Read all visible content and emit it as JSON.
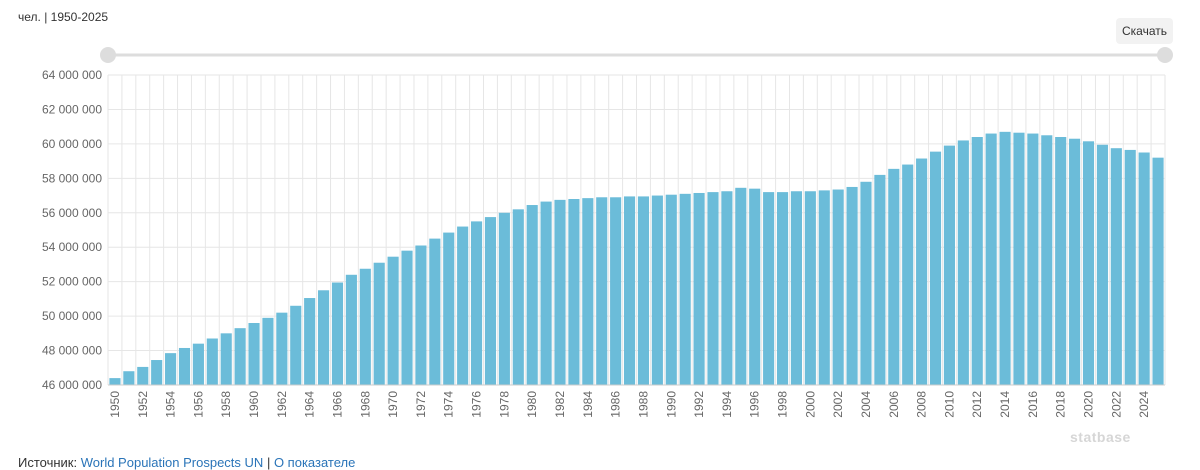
{
  "header": {
    "unit_range": "чел. | 1950-2025",
    "download": "Скачать"
  },
  "chart_data": {
    "type": "bar",
    "color": "#6bbcd9",
    "grid": true,
    "categories": [
      "1950",
      null,
      "1952",
      null,
      "1954",
      null,
      "1956",
      null,
      "1958",
      null,
      "1960",
      null,
      "1962",
      null,
      "1964",
      null,
      "1966",
      null,
      "1968",
      null,
      "1970",
      null,
      "1972",
      null,
      "1974",
      null,
      "1976",
      null,
      "1978",
      null,
      "1980",
      null,
      "1982",
      null,
      "1984",
      null,
      "1986",
      null,
      "1988",
      null,
      "1990",
      null,
      "1992",
      null,
      "1994",
      null,
      "1996",
      null,
      "1998",
      null,
      "2000",
      null,
      "2002",
      null,
      "2004",
      null,
      "2006",
      null,
      "2008",
      null,
      "2010",
      null,
      "2012",
      null,
      "2014",
      null,
      "2016",
      null,
      "2018",
      null,
      "2020",
      null,
      "2022",
      null,
      "2024",
      null
    ],
    "values": [
      46400000,
      46800000,
      47050000,
      47450000,
      47850000,
      48150000,
      48400000,
      48700000,
      49000000,
      49300000,
      49600000,
      49900000,
      50200000,
      50600000,
      51050000,
      51500000,
      51950000,
      52400000,
      52750000,
      53100000,
      53450000,
      53800000,
      54100000,
      54500000,
      54850000,
      55200000,
      55500000,
      55750000,
      56000000,
      56200000,
      56450000,
      56650000,
      56750000,
      56800000,
      56850000,
      56900000,
      56900000,
      56950000,
      56950000,
      57000000,
      57050000,
      57100000,
      57150000,
      57200000,
      57250000,
      57450000,
      57400000,
      57200000,
      57200000,
      57250000,
      57250000,
      57300000,
      57350000,
      57500000,
      57800000,
      58200000,
      58550000,
      58800000,
      59150000,
      59550000,
      59900000,
      60200000,
      60400000,
      60600000,
      60700000,
      60650000,
      60600000,
      60500000,
      60400000,
      60300000,
      60150000,
      59950000,
      59750000,
      59650000,
      59500000,
      59200000
    ],
    "ylim": [
      46000000,
      64000000
    ],
    "yticks": [
      {
        "value": 46000000,
        "label": "46 000 000"
      },
      {
        "value": 48000000,
        "label": "48 000 000"
      },
      {
        "value": 50000000,
        "label": "50 000 000"
      },
      {
        "value": 52000000,
        "label": "52 000 000"
      },
      {
        "value": 54000000,
        "label": "54 000 000"
      },
      {
        "value": 56000000,
        "label": "56 000 000"
      },
      {
        "value": 58000000,
        "label": "58 000 000"
      },
      {
        "value": 60000000,
        "label": "60 000 000"
      },
      {
        "value": 62000000,
        "label": "62 000 000"
      },
      {
        "value": 64000000,
        "label": "64 000 000"
      }
    ]
  },
  "source": {
    "label": "Источник:",
    "link": "World Population Prospects UN",
    "separator": "|",
    "about": "О показателе"
  },
  "watermark": "statbase"
}
